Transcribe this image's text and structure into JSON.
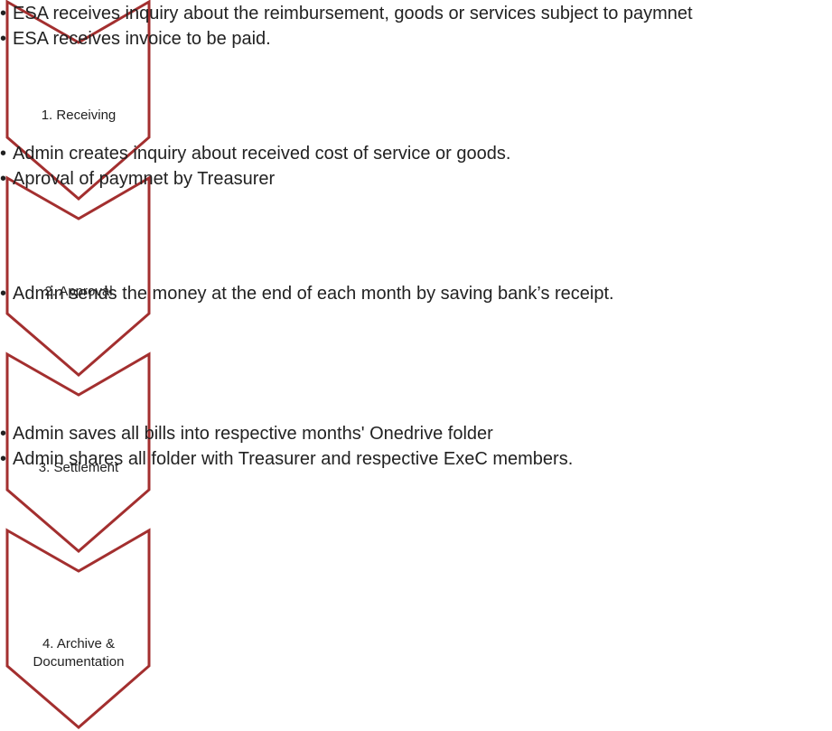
{
  "steps": [
    {
      "label": "1. Receiving",
      "bullets": [
        "ESA receives inquiry about the reimbursement, goods or services subject to paymnet",
        "ESA receives invoice to be paid."
      ]
    },
    {
      "label": "2. Approval",
      "bullets": [
        "Admin creates inquiry about received cost of service or goods.",
        "Aproval of paymnet by Treasurer"
      ]
    },
    {
      "label": "3. Settlement",
      "bullets": [
        "Admin sends the money at the end of each month by saving bank’s receipt."
      ]
    },
    {
      "label": "4. Archive & Documentation",
      "bullets": [
        "Admin saves all bills into respective months' Onedrive folder",
        "Admin shares all folder with Treasurer and respective ExeC members."
      ]
    }
  ]
}
